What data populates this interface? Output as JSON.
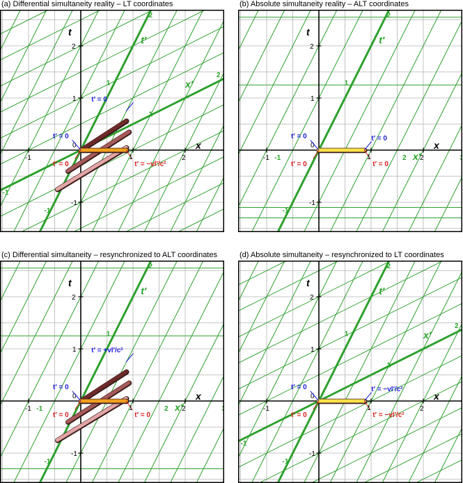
{
  "colors": {
    "grid": "#b4b4b4",
    "green": "#2ea02e",
    "green_label": "#29a329",
    "axis": "#000000",
    "blue": "#1c1cd8",
    "red": "#d81c1c",
    "rod_dark": "#6e2a2a",
    "rod_mid": "#a65a5a",
    "rod_light": "#e2a5a5",
    "rod_yellow": "#ffe14a",
    "rod_orange": "#f0a020"
  },
  "panels": [
    {
      "id": "a",
      "title": "(a) Differential simultaneity reality – LT coordinates",
      "t_prime_label": "t′",
      "x_prime_label": "x′",
      "origin_label": "0",
      "axis_t_label": "t",
      "axis_x_label": "x",
      "x_ticks": [
        "-1",
        "1",
        "2"
      ],
      "t_ticks": [
        "2",
        "1",
        "-1"
      ],
      "tprime_ticks": [
        "1",
        "2",
        "-1"
      ],
      "xprime_ticks": [
        "1",
        "2",
        "-1"
      ],
      "blue_labels": [
        "t′ = 0",
        "t′ = 0"
      ],
      "red_labels": [
        "t′ = 0",
        "t′ = −vl′/c²"
      ],
      "tick_1_right": "1"
    },
    {
      "id": "b",
      "title": "(b) Absolute simultaneity reality – ALT coordinates",
      "t_prime_label": "t′",
      "x_prime_label": "x′",
      "origin_label": "0",
      "axis_t_label": "t",
      "axis_x_label": "x",
      "x_ticks": [
        "-1",
        "1",
        "2"
      ],
      "t_ticks": [
        "2",
        "1",
        "-1"
      ],
      "tprime_ticks": [
        "1",
        "2",
        "-1"
      ],
      "xprime_ticks": [
        "-1",
        "2",
        "3"
      ],
      "blue_labels": [
        "t′ = 0",
        "t′ = 0"
      ],
      "red_labels": [
        "t′ = 0",
        "t′ = 0"
      ],
      "tick_1_right": "1"
    },
    {
      "id": "c",
      "title": "(c) Differential simultaneity – resynchronized to ALT coordinates",
      "t_prime_label": "t′",
      "x_prime_label": "x′",
      "origin_label": "0",
      "axis_t_label": "t",
      "axis_x_label": "x",
      "x_ticks": [
        "-1",
        "1",
        "2"
      ],
      "t_ticks": [
        "2",
        "1",
        "-1"
      ],
      "tprime_ticks": [
        "1",
        "2",
        "-1"
      ],
      "xprime_ticks": [
        "-1",
        "2",
        "3"
      ],
      "blue_labels": [
        "t′ = 0",
        "t′ = +vl′/c²"
      ],
      "red_labels": [
        "t′ = 0",
        "t′ = 0"
      ],
      "tick_1_right": "1"
    },
    {
      "id": "d",
      "title": "(d) Absolute simultaneity – resynchronized to LT coordinates",
      "t_prime_label": "t′",
      "x_prime_label": "x′",
      "origin_label": "0",
      "axis_t_label": "t",
      "axis_x_label": "x",
      "x_ticks": [
        "-1",
        "1",
        "2"
      ],
      "t_ticks": [
        "2",
        "1",
        "-1"
      ],
      "tprime_ticks": [
        "1",
        "2",
        "-1"
      ],
      "xprime_ticks": [
        "1",
        "2",
        "-1"
      ],
      "blue_labels": [
        "t′ = 0",
        "t′ = −vl′/c²"
      ],
      "red_labels": [
        "t′ = 0",
        "t′ = −vl′/c²"
      ],
      "tick_1_right": "1"
    }
  ]
}
